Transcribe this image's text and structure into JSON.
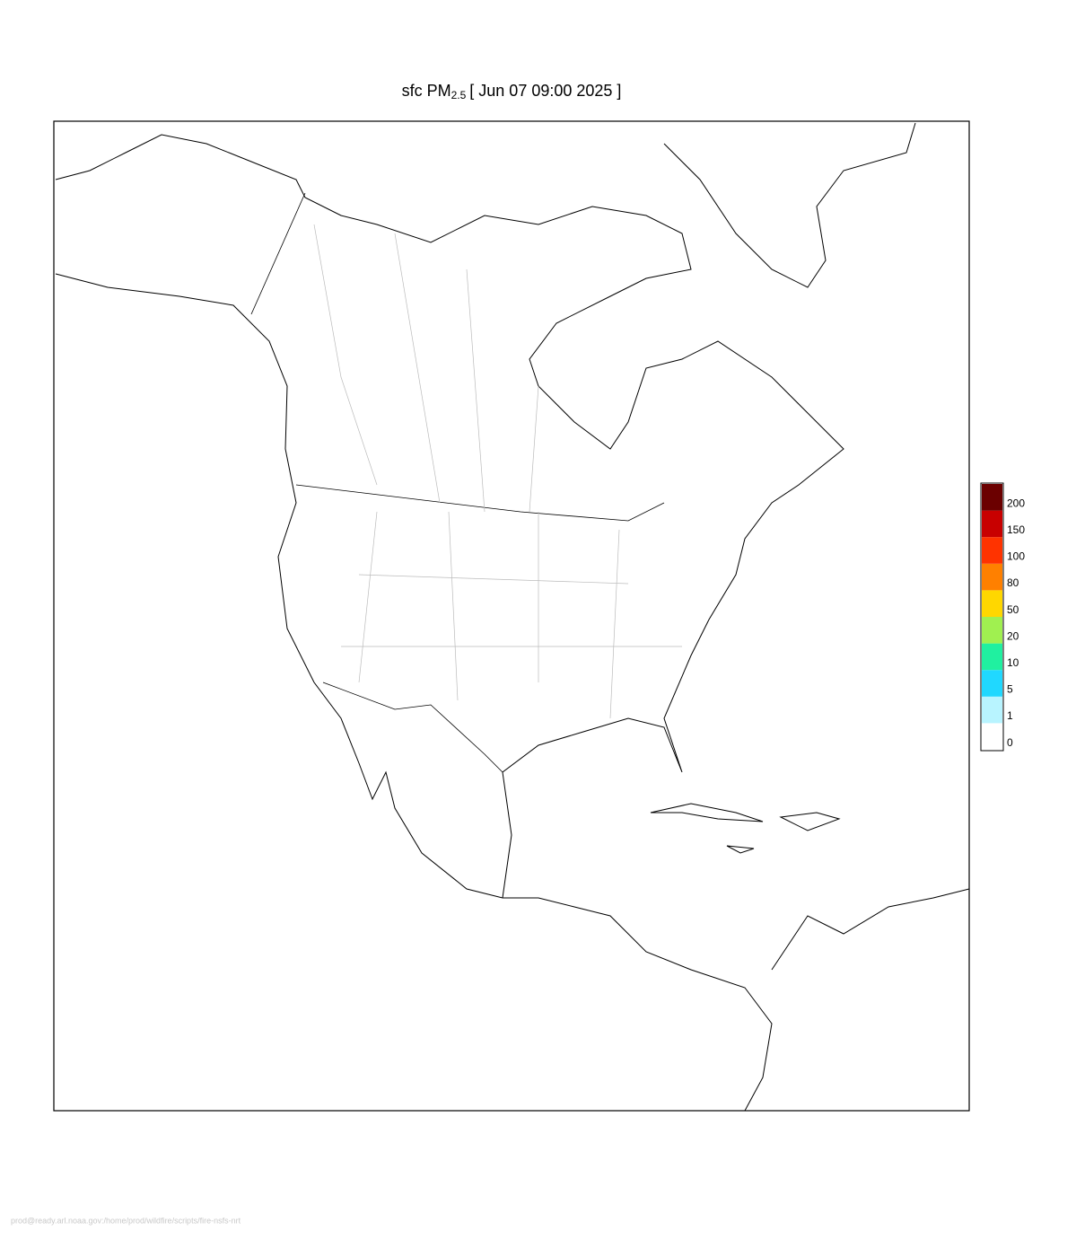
{
  "title": {
    "text": "sfc PM",
    "subscript": "2.5",
    "time": "[ Jun 07 09:00 2025 ]"
  },
  "legend": {
    "labels": [
      200,
      150,
      100,
      80,
      50,
      20,
      10,
      5,
      1,
      0
    ],
    "colors": [
      "#6b0000",
      "#c80000",
      "#ff3300",
      "#ff8000",
      "#ffd700",
      "#a0f050",
      "#20f0a0",
      "#20d8ff",
      "#b8f4ff",
      "#ffffff"
    ]
  },
  "footer": "prod@ready.arl.noaa.gov:/home/prod/wildfire/scripts/fire-nsfs-nrt"
}
